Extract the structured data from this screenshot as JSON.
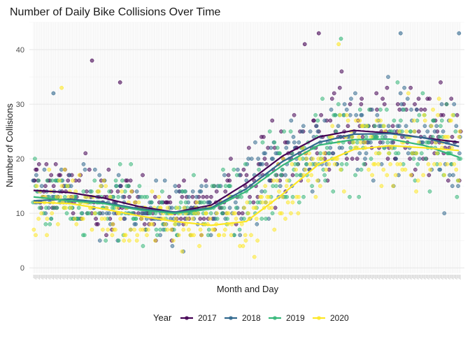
{
  "chart_data": {
    "type": "scatter",
    "title": "Number of Daily Bike Collisions Over Time",
    "xlabel": "Month and Day",
    "ylabel": "Number of Collisions",
    "x_domain": [
      "01-01",
      "12-31"
    ],
    "x_tick_labels_legible": false,
    "ylim": [
      -1,
      45
    ],
    "y_ticks": [
      0,
      10,
      20,
      30,
      40
    ],
    "grid": true,
    "legend_title": "Year",
    "legend_position": "bottom",
    "series": [
      {
        "name": "2017",
        "color": "#440154",
        "trend": [
          {
            "x": "01-01",
            "y": 14.2
          },
          {
            "x": "02-01",
            "y": 13.8
          },
          {
            "x": "03-01",
            "y": 12.8
          },
          {
            "x": "04-01",
            "y": 11.2
          },
          {
            "x": "05-01",
            "y": 10.2
          },
          {
            "x": "06-01",
            "y": 11.5
          },
          {
            "x": "07-01",
            "y": 15.5
          },
          {
            "x": "08-01",
            "y": 20.5
          },
          {
            "x": "09-01",
            "y": 24.0
          },
          {
            "x": "10-01",
            "y": 25.2
          },
          {
            "x": "11-01",
            "y": 24.7
          },
          {
            "x": "12-01",
            "y": 23.8
          },
          {
            "x": "12-31",
            "y": 23.0
          }
        ]
      },
      {
        "name": "2018",
        "color": "#31688e",
        "trend": [
          {
            "x": "01-01",
            "y": 12.3
          },
          {
            "x": "02-01",
            "y": 12.6
          },
          {
            "x": "03-01",
            "y": 12.0
          },
          {
            "x": "04-01",
            "y": 10.8
          },
          {
            "x": "05-01",
            "y": 10.2
          },
          {
            "x": "06-01",
            "y": 11.0
          },
          {
            "x": "07-01",
            "y": 14.5
          },
          {
            "x": "08-01",
            "y": 19.5
          },
          {
            "x": "09-01",
            "y": 23.0
          },
          {
            "x": "10-01",
            "y": 24.5
          },
          {
            "x": "11-01",
            "y": 24.6
          },
          {
            "x": "12-01",
            "y": 23.8
          },
          {
            "x": "12-31",
            "y": 22.2
          }
        ]
      },
      {
        "name": "2019",
        "color": "#35b779",
        "trend": [
          {
            "x": "01-01",
            "y": 13.0
          },
          {
            "x": "02-01",
            "y": 12.3
          },
          {
            "x": "03-01",
            "y": 11.8
          },
          {
            "x": "04-01",
            "y": 10.6
          },
          {
            "x": "05-01",
            "y": 10.0
          },
          {
            "x": "06-01",
            "y": 10.8
          },
          {
            "x": "07-01",
            "y": 14.0
          },
          {
            "x": "08-01",
            "y": 18.8
          },
          {
            "x": "09-01",
            "y": 22.5
          },
          {
            "x": "10-01",
            "y": 23.5
          },
          {
            "x": "11-01",
            "y": 23.6
          },
          {
            "x": "12-01",
            "y": 22.4
          },
          {
            "x": "12-31",
            "y": 20.2
          }
        ]
      },
      {
        "name": "2020",
        "color": "#fde725",
        "trend": [
          {
            "x": "01-01",
            "y": 12.0
          },
          {
            "x": "02-01",
            "y": 11.8
          },
          {
            "x": "03-01",
            "y": 10.8
          },
          {
            "x": "04-01",
            "y": 9.5
          },
          {
            "x": "05-01",
            "y": 8.5
          },
          {
            "x": "06-01",
            "y": 7.8
          },
          {
            "x": "07-01",
            "y": 8.5
          },
          {
            "x": "08-01",
            "y": 13.5
          },
          {
            "x": "09-01",
            "y": 19.0
          },
          {
            "x": "10-01",
            "y": 21.7
          },
          {
            "x": "11-01",
            "y": 22.4
          },
          {
            "x": "12-01",
            "y": 22.0
          },
          {
            "x": "12-31",
            "y": 21.5
          }
        ]
      }
    ],
    "notable_points": [
      {
        "series": "2017",
        "x": "02-20",
        "y": 38
      },
      {
        "series": "2017",
        "x": "03-15",
        "y": 34
      },
      {
        "series": "2017",
        "x": "08-20",
        "y": 41
      },
      {
        "series": "2017",
        "x": "09-01",
        "y": 43
      },
      {
        "series": "2018",
        "x": "11-10",
        "y": 43
      },
      {
        "series": "2018",
        "x": "12-30",
        "y": 43
      },
      {
        "series": "2019",
        "x": "09-20",
        "y": 42
      },
      {
        "series": "2020",
        "x": "09-18",
        "y": 41
      },
      {
        "series": "2018",
        "x": "01-18",
        "y": 32
      },
      {
        "series": "2020",
        "x": "01-25",
        "y": 33
      }
    ]
  }
}
